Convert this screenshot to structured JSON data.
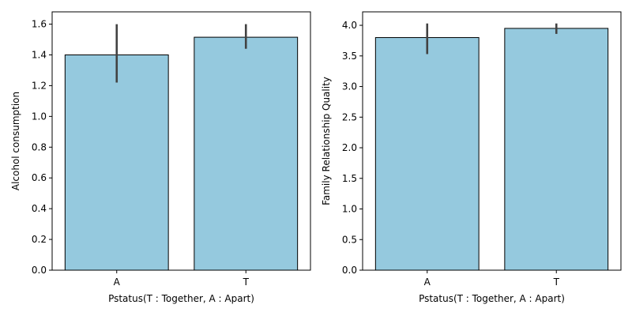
{
  "chart_data": [
    {
      "type": "bar",
      "categories": [
        "A",
        "T"
      ],
      "values": [
        1.4,
        1.515
      ],
      "error_low": [
        1.22,
        1.44
      ],
      "error_high": [
        1.6,
        1.6
      ],
      "xlabel": "Pstatus(T : Together, A : Apart)",
      "ylabel": "Alcohol consumption",
      "ylim": [
        0,
        1.68
      ],
      "yticks": [
        0.0,
        0.2,
        0.4,
        0.6,
        0.8,
        1.0,
        1.2,
        1.4,
        1.6
      ],
      "ytick_labels": [
        "0.0",
        "0.2",
        "0.4",
        "0.6",
        "0.8",
        "1.0",
        "1.2",
        "1.4",
        "1.6"
      ],
      "bar_color": "#95c9de",
      "edge_color": "#000000",
      "error_color": "#424242",
      "grid": false
    },
    {
      "type": "bar",
      "categories": [
        "A",
        "T"
      ],
      "values": [
        3.8,
        3.95
      ],
      "error_low": [
        3.53,
        3.86
      ],
      "error_high": [
        4.03,
        4.03
      ],
      "xlabel": "Pstatus(T : Together, A : Apart)",
      "ylabel": "Family Relationship Quality",
      "ylim": [
        0,
        4.22
      ],
      "yticks": [
        0.0,
        0.5,
        1.0,
        1.5,
        2.0,
        2.5,
        3.0,
        3.5,
        4.0
      ],
      "ytick_labels": [
        "0.0",
        "0.5",
        "1.0",
        "1.5",
        "2.0",
        "2.5",
        "3.0",
        "3.5",
        "4.0"
      ],
      "bar_color": "#95c9de",
      "edge_color": "#000000",
      "error_color": "#424242",
      "grid": false
    }
  ]
}
